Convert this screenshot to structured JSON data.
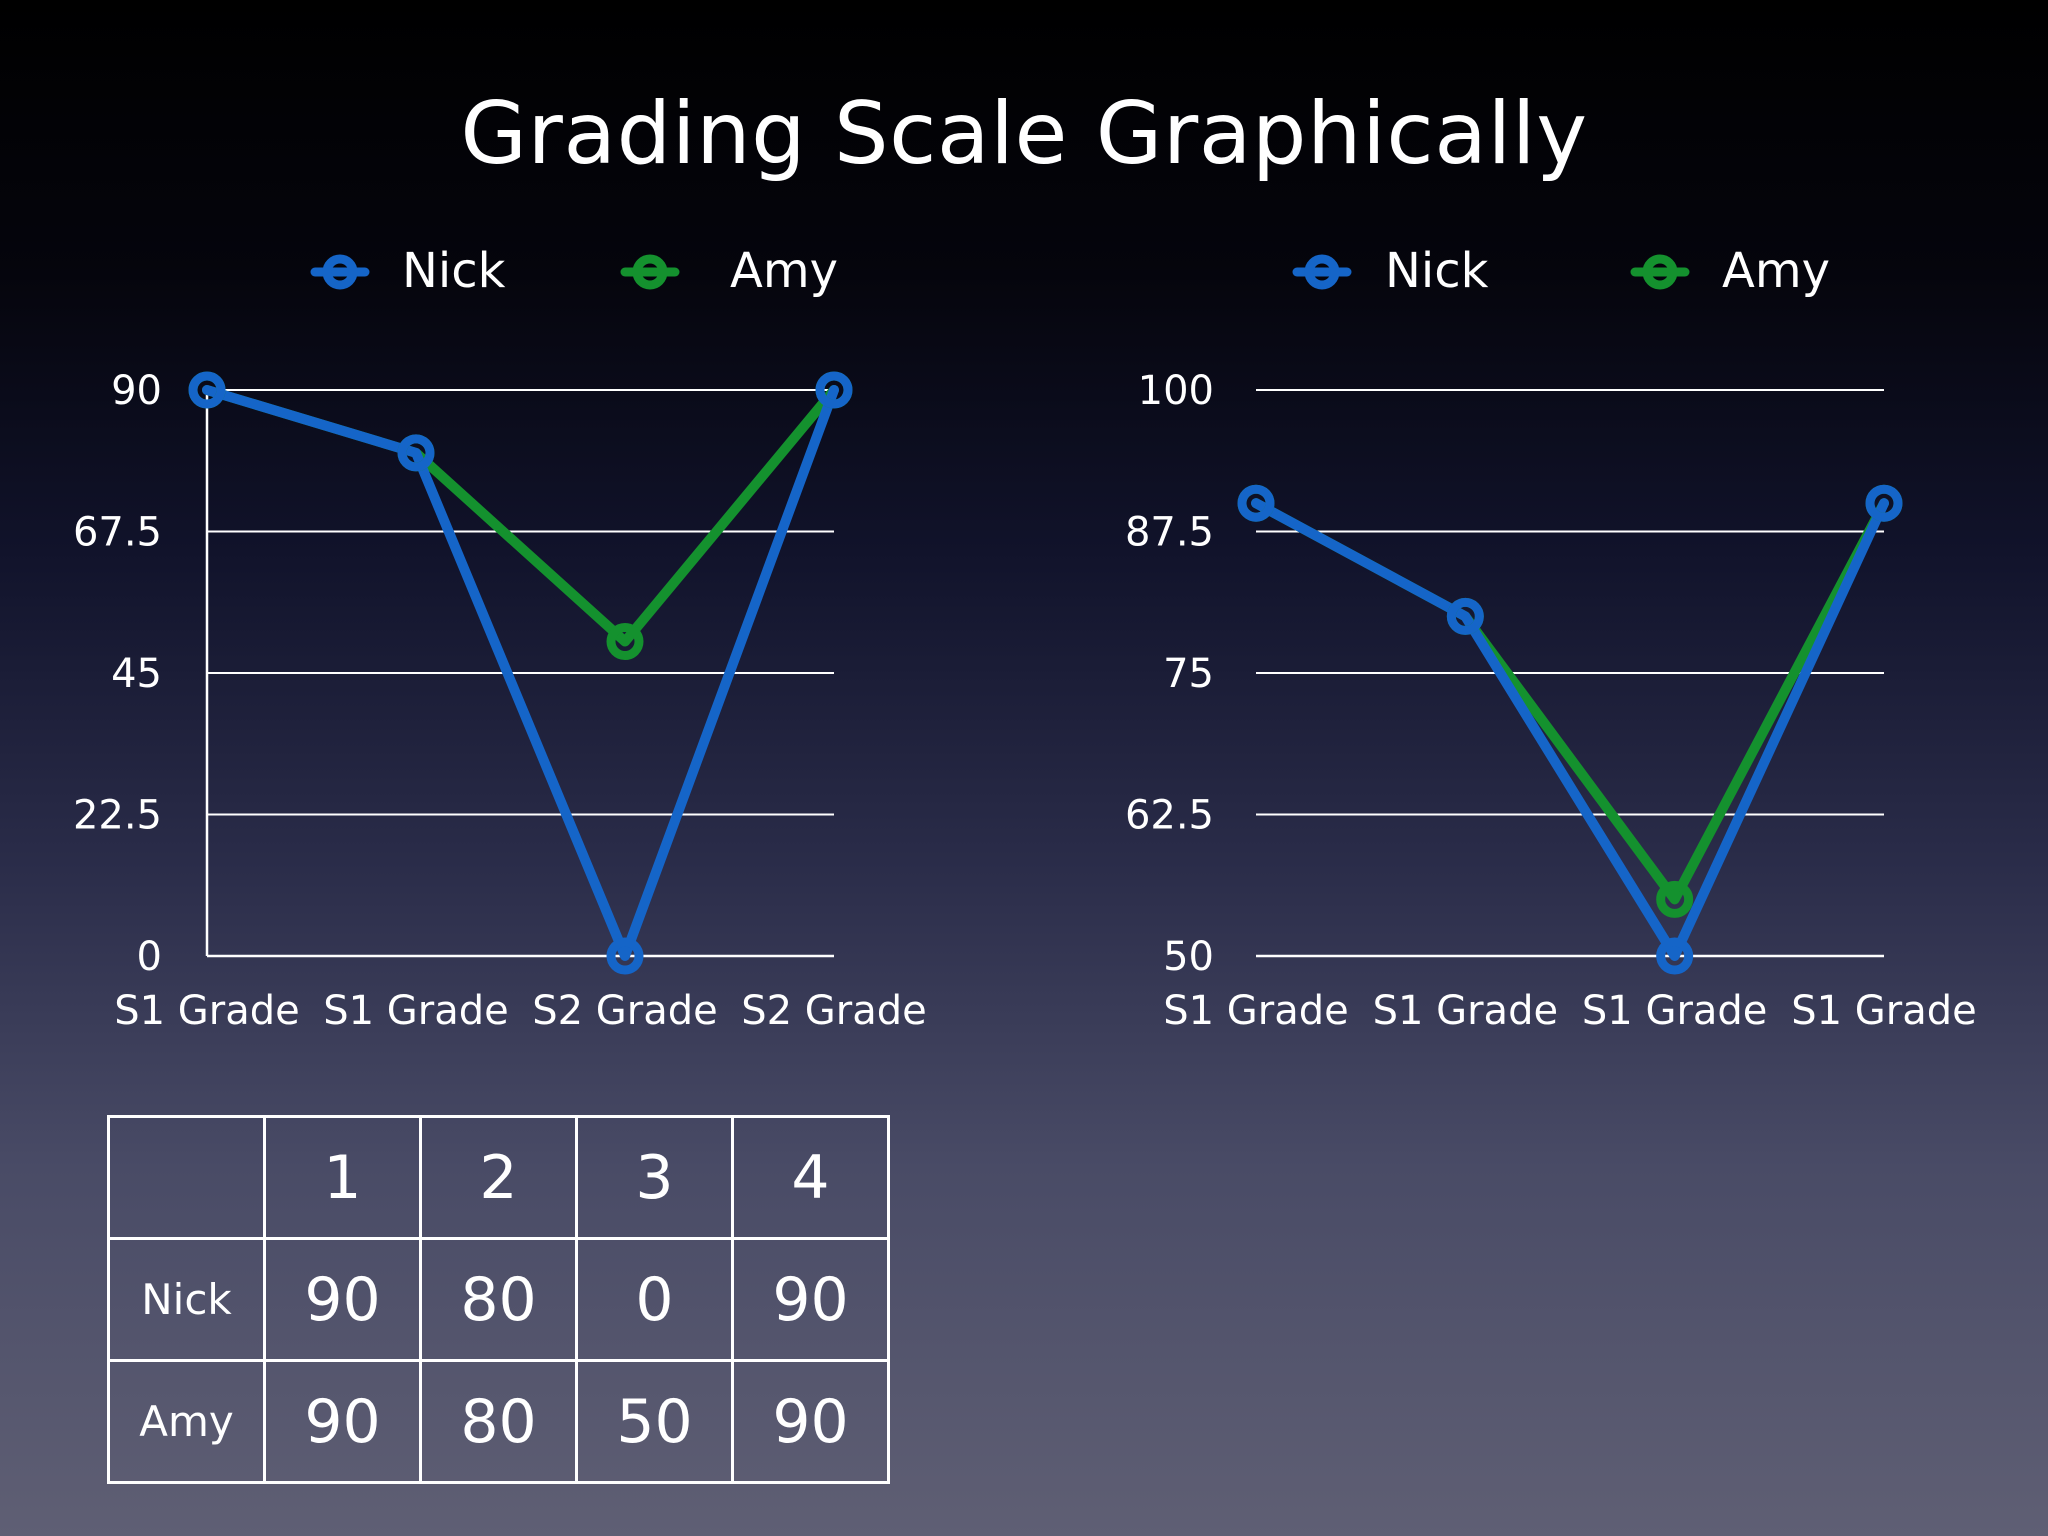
{
  "title": "Grading Scale Graphically",
  "colors": {
    "nick": "#1565c8",
    "amy": "#14912e",
    "grid": "#ffffff",
    "text": "#ffffff"
  },
  "chart_data": [
    {
      "type": "line",
      "categories": [
        "S1 Grade",
        "S1 Grade",
        "S2 Grade",
        "S2 Grade"
      ],
      "series": [
        {
          "name": "Nick",
          "values": [
            90,
            80,
            0,
            90
          ],
          "color": "#1565c8"
        },
        {
          "name": "Amy",
          "values": [
            90,
            80,
            50,
            90
          ],
          "color": "#14912e"
        }
      ],
      "yticks": [
        "90",
        "67.5",
        "45",
        "22.5",
        "0"
      ],
      "ylim": [
        0,
        90
      ],
      "legend": "top",
      "grid": true
    },
    {
      "type": "line",
      "categories": [
        "S1 Grade",
        "S1 Grade",
        "S1 Grade",
        "S1 Grade"
      ],
      "series": [
        {
          "name": "Nick",
          "values": [
            90,
            80,
            50,
            90
          ],
          "color": "#1565c8"
        },
        {
          "name": "Amy",
          "values": [
            90,
            80,
            55,
            90
          ],
          "color": "#14912e"
        }
      ],
      "yticks": [
        "100",
        "87.5",
        "75",
        "62.5",
        "50"
      ],
      "ylim": [
        50,
        100
      ],
      "legend": "top",
      "grid": true
    }
  ],
  "table": {
    "headers": [
      "",
      "1",
      "2",
      "3",
      "4"
    ],
    "rows": [
      {
        "label": "Nick",
        "values": [
          "90",
          "80",
          "0",
          "90"
        ]
      },
      {
        "label": "Amy",
        "values": [
          "90",
          "80",
          "50",
          "90"
        ]
      }
    ]
  }
}
